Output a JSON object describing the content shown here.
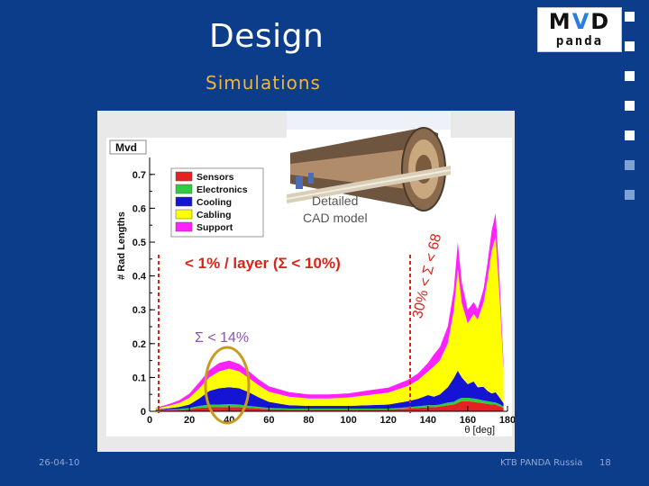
{
  "slide": {
    "title": "Design",
    "subtitle": "Simulations",
    "logo_text_top": "MVD",
    "logo_text_bottom": "panda"
  },
  "footer": {
    "date": "26-04-10",
    "center": "KTB  PANDA Russia",
    "page": "18"
  },
  "colors": {
    "background": "#0c3d8a",
    "subtitle": "#f2b33d",
    "annotation_red": "#d9241a",
    "annotation_purple": "#8a55b8",
    "highlight_circle": "#c99a1e"
  },
  "cad": {
    "caption_line1": "Detailed",
    "caption_line2": "CAD model"
  },
  "annotations": {
    "per_layer": "< 1% / layer (Σ < 10%)",
    "sum14": "Σ < 14%",
    "range": "30% < Σ < 68%"
  },
  "chart_data": {
    "type": "area",
    "stacked": true,
    "title": "Mvd",
    "xlabel": "θ [deg]",
    "ylabel": "# Rad Lengths",
    "xlim": [
      0,
      180
    ],
    "ylim": [
      0,
      0.75
    ],
    "xticks": [
      0,
      20,
      40,
      60,
      80,
      100,
      120,
      140,
      160,
      180
    ],
    "yticks": [
      0,
      0.1,
      0.2,
      0.3,
      0.4,
      0.5,
      0.6,
      0.7
    ],
    "x": [
      3,
      10,
      15,
      20,
      25,
      30,
      35,
      40,
      45,
      50,
      55,
      60,
      70,
      80,
      90,
      100,
      110,
      120,
      130,
      135,
      140,
      143,
      146,
      150,
      153,
      155,
      157,
      160,
      163,
      165,
      168,
      170,
      172,
      174,
      176,
      178
    ],
    "series": [
      {
        "name": "Sensors",
        "color": "#e52222",
        "values": [
          0.002,
          0.003,
          0.004,
          0.006,
          0.01,
          0.012,
          0.012,
          0.013,
          0.012,
          0.01,
          0.008,
          0.006,
          0.005,
          0.005,
          0.005,
          0.005,
          0.005,
          0.005,
          0.008,
          0.01,
          0.012,
          0.012,
          0.014,
          0.018,
          0.02,
          0.025,
          0.03,
          0.03,
          0.028,
          0.026,
          0.024,
          0.022,
          0.02,
          0.02,
          0.015,
          0.01
        ]
      },
      {
        "name": "Electronics",
        "color": "#2ecc40",
        "values": [
          0.001,
          0.002,
          0.003,
          0.004,
          0.006,
          0.008,
          0.008,
          0.008,
          0.008,
          0.006,
          0.005,
          0.004,
          0.003,
          0.003,
          0.003,
          0.003,
          0.003,
          0.003,
          0.004,
          0.005,
          0.006,
          0.006,
          0.006,
          0.008,
          0.008,
          0.01,
          0.01,
          0.01,
          0.01,
          0.01,
          0.008,
          0.008,
          0.008,
          0.006,
          0.006,
          0.004
        ]
      },
      {
        "name": "Cooling",
        "color": "#1414d2",
        "values": [
          0.002,
          0.004,
          0.006,
          0.01,
          0.022,
          0.04,
          0.048,
          0.05,
          0.048,
          0.04,
          0.028,
          0.018,
          0.01,
          0.008,
          0.008,
          0.008,
          0.01,
          0.012,
          0.018,
          0.022,
          0.03,
          0.025,
          0.03,
          0.045,
          0.07,
          0.085,
          0.06,
          0.04,
          0.05,
          0.035,
          0.04,
          0.03,
          0.025,
          0.03,
          0.02,
          0.01
        ]
      },
      {
        "name": "Cabling",
        "color": "#ffff00",
        "values": [
          0.003,
          0.008,
          0.012,
          0.02,
          0.03,
          0.04,
          0.05,
          0.055,
          0.05,
          0.042,
          0.035,
          0.03,
          0.025,
          0.022,
          0.022,
          0.025,
          0.03,
          0.035,
          0.045,
          0.055,
          0.07,
          0.09,
          0.1,
          0.13,
          0.2,
          0.3,
          0.22,
          0.18,
          0.2,
          0.2,
          0.25,
          0.33,
          0.42,
          0.46,
          0.3,
          0.1
        ]
      },
      {
        "name": "Support",
        "color": "#ff22ff",
        "values": [
          0.002,
          0.005,
          0.008,
          0.012,
          0.018,
          0.022,
          0.025,
          0.024,
          0.022,
          0.02,
          0.018,
          0.016,
          0.014,
          0.012,
          0.012,
          0.012,
          0.014,
          0.015,
          0.018,
          0.02,
          0.025,
          0.035,
          0.04,
          0.05,
          0.06,
          0.08,
          0.06,
          0.04,
          0.035,
          0.03,
          0.04,
          0.05,
          0.06,
          0.07,
          0.05,
          0.02
        ]
      }
    ],
    "legend_position": "top-left",
    "grid": false
  }
}
